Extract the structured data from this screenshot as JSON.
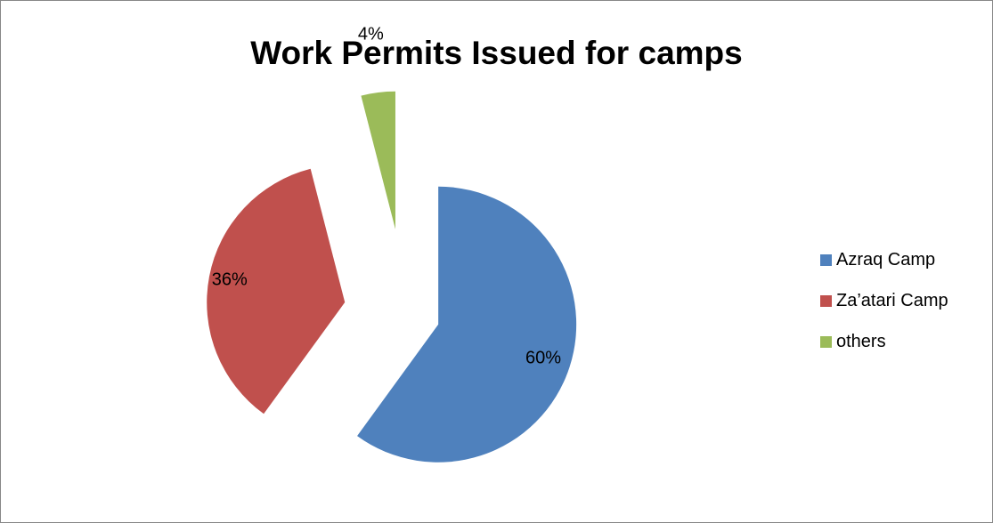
{
  "chart_data": {
    "type": "pie",
    "title": "Work Permits Issued for camps",
    "labels": [
      "Azraq Camp",
      "Za’atari Camp",
      "others"
    ],
    "values": [
      60,
      36,
      4
    ],
    "value_labels": [
      "60%",
      "36%",
      "4%"
    ],
    "colors": [
      "#4F81BD",
      "#C0504D",
      "#9BBB59"
    ],
    "exploded": true,
    "legend_position": "right"
  }
}
